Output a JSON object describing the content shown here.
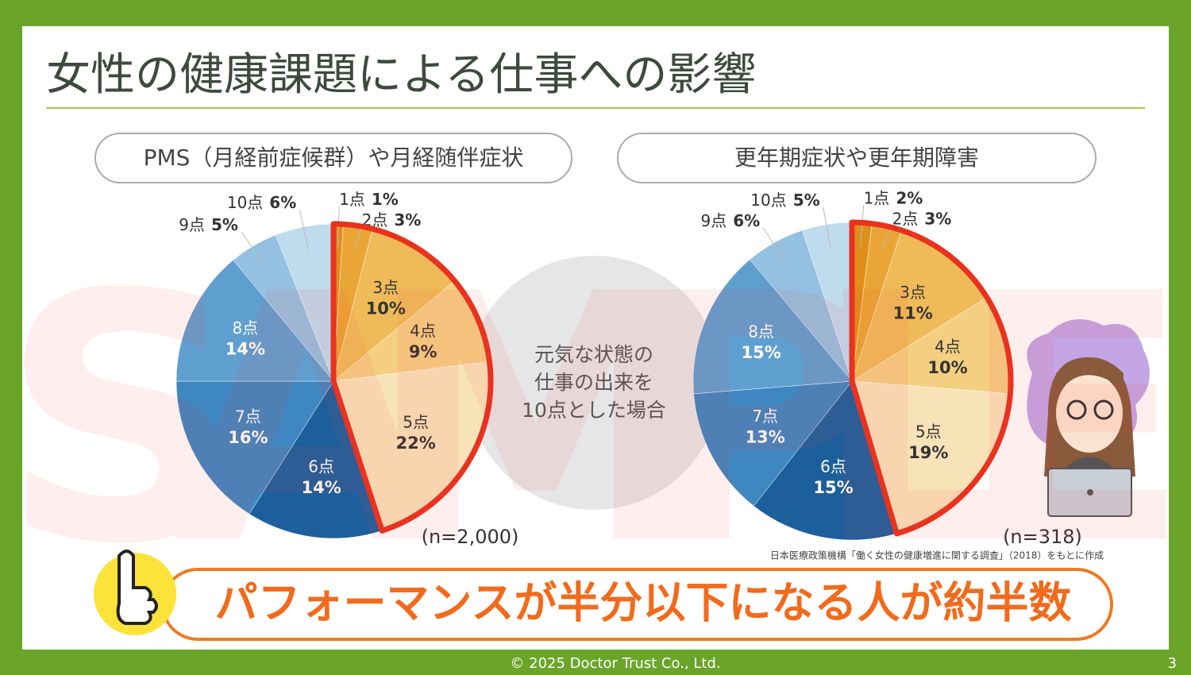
{
  "title": "女性の健康課題による仕事への影響",
  "watermark": "SAMPLE",
  "center_text": [
    "元気な状態の",
    "仕事の出来を",
    "10点とした場合"
  ],
  "source": "日本医療政策機構「働く女性の健康増進に関する調査」（2018）をもとに作成",
  "banner": "パフォーマンスが半分以下になる人が約半数",
  "footer": "© 2025 Doctor Trust Co., Ltd.",
  "page_number": 3,
  "chart_data": [
    {
      "type": "pie",
      "title": "PMS（月経前症候群）や月経随伴症状",
      "subtitle": "(n=2,000)",
      "categories": [
        "1点",
        "2点",
        "3点",
        "4点",
        "5点",
        "6点",
        "7点",
        "8点",
        "9点",
        "10点"
      ],
      "values": [
        1,
        3,
        10,
        9,
        22,
        14,
        16,
        14,
        5,
        6
      ],
      "value_labels": [
        "1%",
        "3%",
        "10%",
        "9%",
        "22%",
        "14%",
        "16%",
        "14%",
        "5%",
        "6%"
      ],
      "colors": [
        "#de8f1a",
        "#e9a535",
        "#efbb58",
        "#f4cf82",
        "#f8e3b9",
        "#1c5f9c",
        "#3f87c1",
        "#5f9fd0",
        "#94c0e1",
        "#bfdbee"
      ]
    },
    {
      "type": "pie",
      "title": "更年期症状や更年期障害",
      "subtitle": "(n=318)",
      "categories": [
        "1点",
        "2点",
        "3点",
        "4点",
        "5点",
        "6点",
        "7点",
        "8点",
        "9点",
        "10点"
      ],
      "values": [
        2,
        3,
        11,
        10,
        19,
        15,
        13,
        15,
        6,
        5
      ],
      "value_labels": [
        "2%",
        "3%",
        "11%",
        "10%",
        "19%",
        "15%",
        "13%",
        "15%",
        "6%",
        "5%"
      ],
      "colors": [
        "#de8f1a",
        "#e9a535",
        "#efbb58",
        "#f4cf82",
        "#f8e3b9",
        "#1c5f9c",
        "#3f87c1",
        "#5f9fd0",
        "#94c0e1",
        "#bfdbee"
      ]
    }
  ]
}
